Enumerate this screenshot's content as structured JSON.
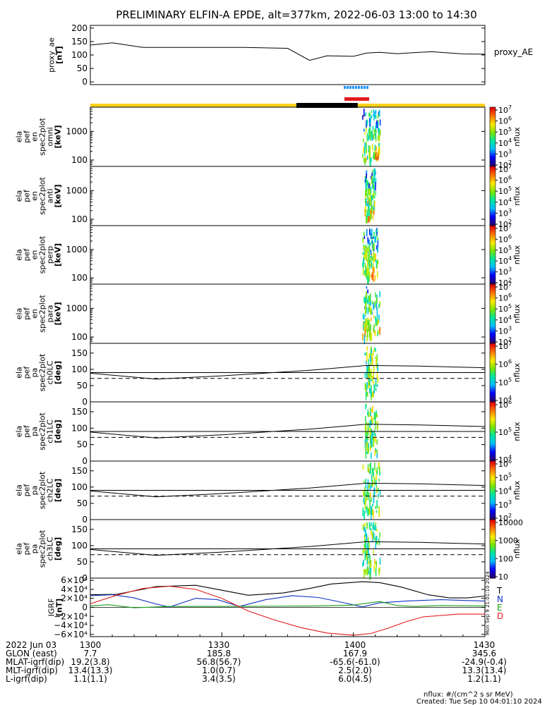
{
  "title": "PRELIMINARY ELFIN-A EPDE, alt=377km, 2022-06-03 13:00 to 14:30",
  "colors": {
    "night_bar": "#000000",
    "day_bar": "#ffd21a",
    "science_blue": "#1e90ff",
    "science_red": "#e41a1a",
    "bx": "#000000",
    "by": "#1030c0",
    "bz": "#1aa01a",
    "bd": "#e01a1a"
  },
  "chart_data": [
    {
      "type": "line",
      "panel": "proxy_ae",
      "ylabel": [
        "proxy_ae",
        "[nT]"
      ],
      "right_label": "proxy_AE",
      "ylim": [
        -10,
        210
      ],
      "yticks": [
        0,
        50,
        100,
        150,
        200
      ],
      "x": [
        0,
        5,
        12,
        20,
        35,
        45,
        50,
        54,
        60,
        63,
        66,
        70,
        75,
        78,
        85,
        90
      ],
      "values": [
        137,
        145,
        128,
        128,
        128,
        125,
        80,
        97,
        95,
        107,
        110,
        105,
        110,
        112,
        104,
        103
      ]
    },
    {
      "type": "heatmap",
      "panel": "omni",
      "ylabel": [
        "ela",
        "pef",
        "en",
        "spec2plot",
        "omni",
        "[keV]"
      ],
      "yscale": "log",
      "ylim": [
        60,
        7000
      ],
      "yticks": [
        100,
        1000
      ],
      "colorbar": {
        "label": "nflux",
        "ticks": [
          "10^2",
          "10^3",
          "10^4",
          "10^5",
          "10^6",
          "10^7"
        ]
      },
      "active_time_range": [
        62.0,
        66.0
      ]
    },
    {
      "type": "heatmap",
      "panel": "anti",
      "ylabel": [
        "ela",
        "pef",
        "en",
        "spec2plot",
        "anti",
        "[keV]"
      ],
      "yscale": "log",
      "ylim": [
        60,
        7000
      ],
      "yticks": [
        100,
        1000
      ],
      "colorbar": {
        "label": "nflux",
        "ticks": [
          "10^2",
          "10^3",
          "10^4",
          "10^5",
          "10^6",
          "10^7"
        ]
      },
      "active_time_range": [
        62.5,
        65.0
      ]
    },
    {
      "type": "heatmap",
      "panel": "perp",
      "ylabel": [
        "ela",
        "pef",
        "en",
        "spec2plot",
        "perp",
        "[keV]"
      ],
      "yscale": "log",
      "ylim": [
        60,
        7000
      ],
      "yticks": [
        100,
        1000
      ],
      "colorbar": {
        "label": "nflux",
        "ticks": [
          "10^2",
          "10^3",
          "10^4",
          "10^5",
          "10^6",
          "10^7"
        ]
      },
      "active_time_range": [
        62.0,
        65.5
      ]
    },
    {
      "type": "heatmap",
      "panel": "para",
      "ylabel": [
        "ela",
        "pef",
        "en",
        "spec2plot",
        "para",
        "[keV]"
      ],
      "yscale": "log",
      "ylim": [
        60,
        7000
      ],
      "yticks": [
        100,
        1000
      ],
      "colorbar": {
        "label": "nflux",
        "ticks": [
          "10^2",
          "10^3",
          "10^4",
          "10^5",
          "10^6",
          "10^7"
        ]
      },
      "active_time_range": [
        62.0,
        66.0
      ]
    },
    {
      "type": "heatmap",
      "panel": "ch0LC",
      "ylabel": [
        "ela",
        "pef",
        "pa",
        "spec2plot",
        "ch0LC",
        "[deg]"
      ],
      "ylim": [
        0,
        180
      ],
      "yticks": [
        0,
        50,
        100,
        150
      ],
      "colorbar": {
        "label": "nflux",
        "ticks": [
          "10^4",
          "10^5",
          "10^6",
          "10^7"
        ]
      },
      "lc_solid": [
        [
          0,
          88
        ],
        [
          15,
          70
        ],
        [
          30,
          80
        ],
        [
          50,
          97
        ],
        [
          63,
          112
        ],
        [
          75,
          110
        ],
        [
          90,
          105
        ]
      ],
      "lc_dashed": [
        [
          0,
          72
        ],
        [
          90,
          72
        ]
      ],
      "active_time_range": [
        62.5,
        65.5
      ]
    },
    {
      "type": "heatmap",
      "panel": "ch1LC",
      "ylabel": [
        "ela",
        "pef",
        "pa",
        "spec2plot",
        "ch1LC",
        "[deg]"
      ],
      "ylim": [
        0,
        180
      ],
      "yticks": [
        0,
        50,
        100,
        150
      ],
      "colorbar": {
        "label": "nflux",
        "ticks": [
          "10^4",
          "10^5",
          "10^6"
        ]
      },
      "lc_solid": [
        [
          0,
          88
        ],
        [
          15,
          70
        ],
        [
          30,
          80
        ],
        [
          50,
          97
        ],
        [
          63,
          112
        ],
        [
          75,
          110
        ],
        [
          90,
          105
        ]
      ],
      "lc_dashed": [
        [
          0,
          72
        ],
        [
          90,
          72
        ]
      ],
      "active_time_range": [
        62.5,
        65.5
      ]
    },
    {
      "type": "heatmap",
      "panel": "ch2LC",
      "ylabel": [
        "ela",
        "pef",
        "pa",
        "spec2plot",
        "ch2LC",
        "[deg]"
      ],
      "ylim": [
        0,
        180
      ],
      "yticks": [
        0,
        50,
        100,
        150
      ],
      "colorbar": {
        "label": "nflux",
        "ticks": [
          "10^2",
          "10^3",
          "10^4",
          "10^5",
          "10^6"
        ]
      },
      "lc_solid": [
        [
          0,
          88
        ],
        [
          15,
          70
        ],
        [
          30,
          80
        ],
        [
          50,
          97
        ],
        [
          63,
          112
        ],
        [
          75,
          110
        ],
        [
          90,
          105
        ]
      ],
      "lc_dashed": [
        [
          0,
          72
        ],
        [
          90,
          72
        ]
      ],
      "active_time_range": [
        62.0,
        66.0
      ]
    },
    {
      "type": "heatmap",
      "panel": "ch3LC",
      "ylabel": [
        "ela",
        "pef",
        "pa",
        "spec2plot",
        "ch3LC",
        "[deg]"
      ],
      "ylim": [
        0,
        180
      ],
      "yticks": [
        0,
        50,
        100,
        150
      ],
      "colorbar": {
        "label": "nflux",
        "ticks": [
          "10",
          "100",
          "1000",
          "10000"
        ]
      },
      "lc_solid": [
        [
          0,
          88
        ],
        [
          15,
          70
        ],
        [
          30,
          80
        ],
        [
          50,
          97
        ],
        [
          63,
          112
        ],
        [
          75,
          110
        ],
        [
          90,
          105
        ]
      ],
      "lc_dashed": [
        [
          0,
          72
        ],
        [
          90,
          72
        ]
      ],
      "active_time_range": [
        62.0,
        66.0
      ]
    },
    {
      "type": "line",
      "panel": "IGRF",
      "ylabel": [
        "IGRF",
        "[nT]"
      ],
      "ylim": [
        -65000,
        65000
      ],
      "yticks": [
        -60000,
        -40000,
        -20000,
        0,
        20000,
        40000,
        60000
      ],
      "ytick_labels": [
        "−6×10⁴",
        "−4×10⁴",
        "−2×10⁴",
        "0",
        "2×10⁴",
        "4×10⁴",
        "6×10⁴"
      ],
      "legend": [
        "T",
        "N",
        "E",
        "D"
      ],
      "series": [
        {
          "name": "T",
          "x": [
            0,
            6,
            15,
            24,
            30,
            36,
            44,
            50,
            55,
            62,
            66,
            71,
            77,
            82,
            86,
            90
          ],
          "values": [
            28000,
            29000,
            46000,
            49000,
            38000,
            27000,
            32000,
            42000,
            52000,
            57000,
            55000,
            45000,
            28000,
            21000,
            21000,
            25000
          ]
        },
        {
          "name": "N",
          "x": [
            0,
            5,
            10,
            14,
            18,
            24,
            29,
            34,
            40,
            46,
            52,
            58,
            62,
            66,
            72,
            80,
            90
          ],
          "values": [
            26000,
            28000,
            21000,
            10000,
            500,
            20000,
            17000,
            2000,
            17000,
            26000,
            22000,
            10000,
            1000,
            10000,
            14000,
            17000,
            14000
          ]
        },
        {
          "name": "E",
          "x": [
            0,
            4,
            10,
            18,
            30,
            50,
            60,
            66,
            70,
            74,
            80,
            90
          ],
          "values": [
            3000,
            6000,
            -1000,
            2000,
            2000,
            3000,
            5000,
            13000,
            4000,
            2000,
            4000,
            3000
          ]
        },
        {
          "name": "D",
          "x": [
            0,
            6,
            12,
            18,
            24,
            30,
            36,
            42,
            48,
            54,
            60,
            64,
            68,
            72,
            76,
            80,
            84,
            90
          ],
          "values": [
            8000,
            27000,
            42000,
            47000,
            40000,
            20000,
            -8000,
            -28000,
            -45000,
            -57000,
            -62000,
            -58000,
            -46000,
            -32000,
            -21000,
            -18000,
            -15000,
            -15000
          ]
        }
      ]
    }
  ],
  "xaxis": {
    "date_label": "2022 Jun 03",
    "ticks": [
      "1300",
      "1330",
      "1400",
      "1430"
    ],
    "rows": [
      {
        "label": "GLON (east)",
        "values": [
          "7.7",
          "185.8",
          "167.9",
          "345.6"
        ]
      },
      {
        "label": "MLAT-igrf(dip)",
        "values": [
          "19.2(3.8)",
          "56.8(56.7)",
          "-65.6(-61.0)",
          "-24.9(-0.4)"
        ]
      },
      {
        "label": "MLT-igrf(dip)",
        "values": [
          "13.4(13.3)",
          "1.0(0.7)",
          "2.5(2.0)",
          "13.3(13.4)"
        ]
      },
      {
        "label": "L-igrf(dip)",
        "values": [
          "1.1(1.1)",
          "3.4(3.5)",
          "6.0(4.5)",
          "1.2(1.1)"
        ]
      }
    ]
  },
  "footer": {
    "units": "nflux: #/(cm^2 s sr MeV)",
    "created": "Created: Tue Sep 10 04:01:10 2024",
    "side_stamp": "Mon Sep 9 21:01:10 2024"
  }
}
